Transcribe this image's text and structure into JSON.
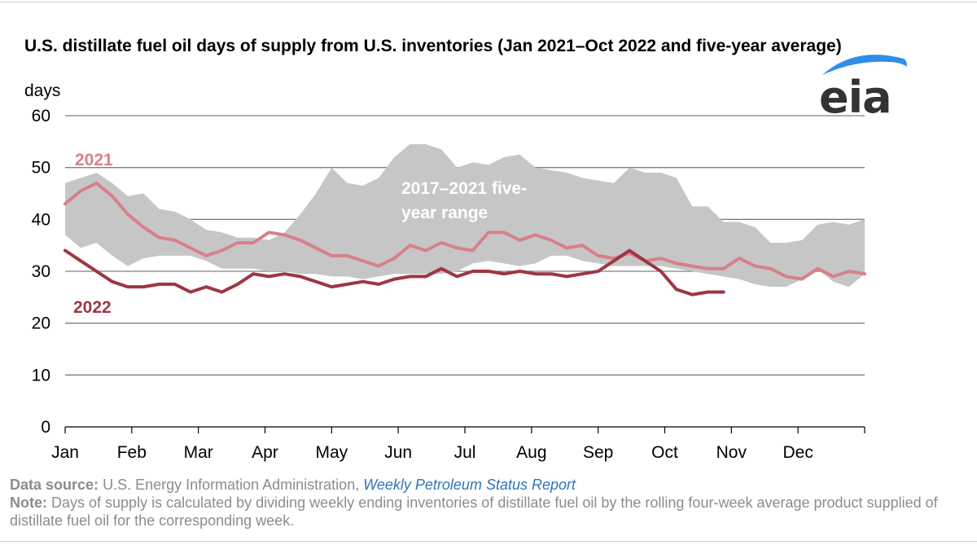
{
  "title": "U.S. distillate fuel oil days of supply from U.S. inventories (Jan 2021–Oct 2022 and five-year average)",
  "logo": {
    "text": "eia",
    "arc_color": "#2f8ee8",
    "icon": "eia-logo"
  },
  "footer": {
    "source_label": "Data source:",
    "source_text": "U.S. Energy Information Administration,",
    "source_link": "Weekly Petroleum Status Report",
    "note_label": "Note:",
    "note_text": "Days of supply is calculated by dividing weekly ending inventories of distillate fuel oil by the rolling four-week average product supplied of distillate fuel oil for the corresponding week."
  },
  "chart_data": {
    "type": "line",
    "ylabel": "days",
    "ylim": [
      0,
      60
    ],
    "yticks": [
      0,
      10,
      20,
      30,
      40,
      50,
      60
    ],
    "x_domain_weeks": [
      0,
      51
    ],
    "xtick_labels": [
      "Jan",
      "Feb",
      "Mar",
      "Apr",
      "May",
      "Jun",
      "Jul",
      "Aug",
      "Sep",
      "Oct",
      "Nov",
      "Dec"
    ],
    "grid": true,
    "colors": {
      "range": "#c6c6c6",
      "s2021": "#d88089",
      "s2022": "#9e3643",
      "grid": "#7f7f7f",
      "axis": "#000000"
    },
    "annotations": [
      {
        "id": "range-label",
        "lines": [
          "2017–2021 five-",
          "year range"
        ],
        "color": "#ffffff"
      },
      {
        "id": "label-2021",
        "text": "2021",
        "color": "#d88089"
      },
      {
        "id": "label-2022",
        "text": "2022",
        "color": "#9e3643"
      }
    ],
    "range": {
      "name": "2017–2021 five-year range",
      "upper": [
        47,
        48,
        49,
        47,
        44.5,
        45,
        42,
        41.5,
        40,
        38,
        37.5,
        36.5,
        36.5,
        36,
        37.5,
        41,
        45,
        50,
        47,
        46.5,
        48,
        52,
        54.5,
        54.5,
        53.5,
        50,
        51,
        50.5,
        52,
        52.5,
        50,
        49.5,
        49,
        48,
        47.5,
        47,
        50,
        49,
        49,
        48,
        42.5,
        42.5,
        39.5,
        39.5,
        38.5,
        35.5,
        35.5,
        36,
        39,
        39.5,
        39,
        40
      ],
      "lower": [
        37,
        34.5,
        35.5,
        33,
        31,
        32.5,
        33,
        33,
        33,
        32,
        30.5,
        30.5,
        30.5,
        30,
        30,
        29.5,
        29.5,
        29,
        29,
        28.5,
        29,
        29.5,
        29.5,
        29.5,
        29.5,
        30,
        31.5,
        32,
        31.5,
        31,
        31.5,
        33,
        33,
        32,
        31.5,
        31,
        31,
        31,
        31,
        30.5,
        30,
        29.5,
        29,
        28.5,
        27.5,
        27,
        27,
        28.5,
        30.5,
        28,
        27,
        29.5
      ]
    },
    "series": [
      {
        "name": "2021",
        "values": [
          43,
          45.5,
          47,
          44.5,
          41,
          38.5,
          36.5,
          36,
          34.5,
          33,
          34,
          35.5,
          35.5,
          37.5,
          37,
          36,
          34.5,
          33,
          33,
          32,
          31,
          32.5,
          35,
          34,
          35.5,
          34.5,
          34,
          37.5,
          37.5,
          36,
          37,
          36,
          34.5,
          35,
          33,
          32.5,
          33.5,
          32,
          32.5,
          31.5,
          31,
          30.5,
          30.5,
          32.5,
          31,
          30.5,
          29,
          28.5,
          30.5,
          29,
          30,
          29.5
        ]
      },
      {
        "name": "2022",
        "values": [
          34,
          32,
          30,
          28,
          27,
          27,
          27.5,
          27.5,
          26,
          27,
          26,
          27.5,
          29.5,
          29,
          29.5,
          29,
          28,
          27,
          27.5,
          28,
          27.5,
          28.5,
          29,
          29,
          30.5,
          29,
          30,
          30,
          29.5,
          30,
          29.5,
          29.5,
          29,
          29.5,
          30,
          32,
          34,
          32,
          30,
          26.5,
          25.5,
          26,
          26
        ]
      }
    ]
  }
}
